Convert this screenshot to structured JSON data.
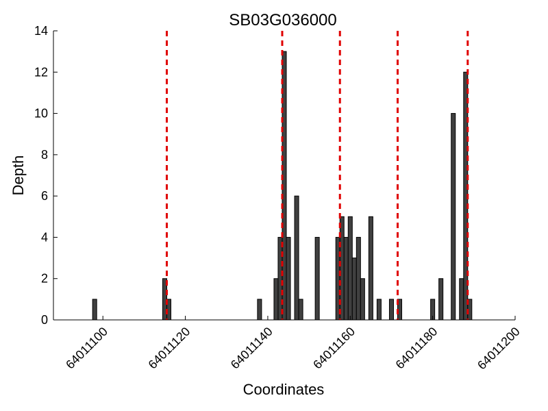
{
  "chart_data": {
    "type": "bar",
    "title": "SB03G036000",
    "xlabel": "Coordinates",
    "ylabel": "Depth",
    "xlim": [
      64011088,
      64011200
    ],
    "ylim": [
      0,
      14
    ],
    "x_ticks": [
      64011100,
      64011120,
      64011140,
      64011160,
      64011180,
      64011200
    ],
    "y_ticks": [
      0,
      2,
      4,
      6,
      8,
      10,
      12,
      14
    ],
    "grid": false,
    "bar_color": "#404040",
    "line_color": "#e00000",
    "bars": [
      {
        "x": 64011098,
        "y": 1
      },
      {
        "x": 64011115,
        "y": 2
      },
      {
        "x": 64011116,
        "y": 1
      },
      {
        "x": 64011138,
        "y": 1
      },
      {
        "x": 64011142,
        "y": 2
      },
      {
        "x": 64011143,
        "y": 4
      },
      {
        "x": 64011144,
        "y": 13
      },
      {
        "x": 64011145,
        "y": 4
      },
      {
        "x": 64011147,
        "y": 6
      },
      {
        "x": 64011148,
        "y": 1
      },
      {
        "x": 64011152,
        "y": 4
      },
      {
        "x": 64011157,
        "y": 4
      },
      {
        "x": 64011158,
        "y": 5
      },
      {
        "x": 64011159,
        "y": 4
      },
      {
        "x": 64011160,
        "y": 5
      },
      {
        "x": 64011161,
        "y": 3
      },
      {
        "x": 64011162,
        "y": 4
      },
      {
        "x": 64011163,
        "y": 2
      },
      {
        "x": 64011165,
        "y": 5
      },
      {
        "x": 64011167,
        "y": 1
      },
      {
        "x": 64011170,
        "y": 1
      },
      {
        "x": 64011172,
        "y": 1
      },
      {
        "x": 64011180,
        "y": 1
      },
      {
        "x": 64011182,
        "y": 2
      },
      {
        "x": 64011185,
        "y": 10
      },
      {
        "x": 64011187,
        "y": 2
      },
      {
        "x": 64011188,
        "y": 12
      },
      {
        "x": 64011189,
        "y": 1
      }
    ],
    "vlines": [
      64011115.5,
      64011143.5,
      64011157.5,
      64011171.5,
      64011188.5
    ]
  }
}
